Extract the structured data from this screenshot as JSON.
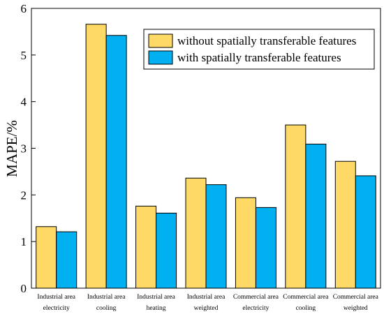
{
  "chart_data": {
    "type": "bar",
    "title": "",
    "xlabel": "",
    "ylabel": "MAPE/%",
    "ylim": [
      0,
      6
    ],
    "yticks": [
      "0",
      "1",
      "2",
      "3",
      "4",
      "5",
      "6"
    ],
    "categories": [
      [
        "Industrial area",
        "electricity"
      ],
      [
        "Industrial area",
        "cooling"
      ],
      [
        "Industrial area",
        "heating"
      ],
      [
        "Industrial area",
        "weighted"
      ],
      [
        "Commercial area",
        "electricity"
      ],
      [
        "Commercial area",
        "cooling"
      ],
      [
        "Commercial area",
        "weighted"
      ]
    ],
    "series": [
      {
        "name": "without spatially transferable features",
        "color": "#FFD966",
        "values": [
          1.32,
          5.66,
          1.76,
          2.36,
          1.94,
          3.5,
          2.72
        ]
      },
      {
        "name": "with spatially transferable features",
        "color": "#00B0F0",
        "values": [
          1.21,
          5.42,
          1.61,
          2.22,
          1.73,
          3.09,
          2.41
        ]
      }
    ],
    "grid": false,
    "legend_position": "top-right"
  }
}
